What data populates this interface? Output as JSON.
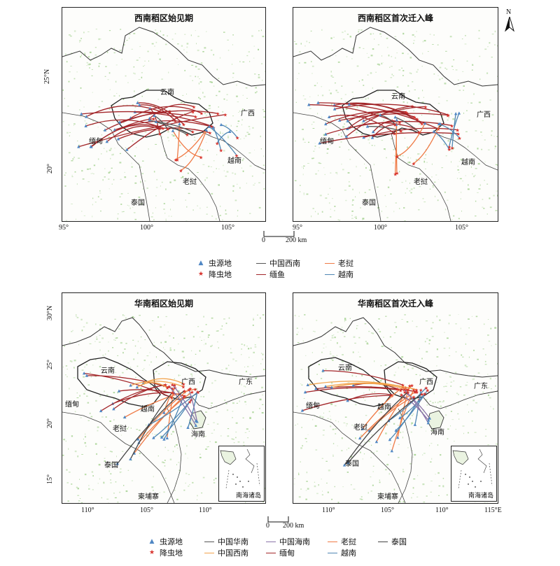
{
  "north_label": "N",
  "scale_top": {
    "zero": "0",
    "label": "200 km"
  },
  "scale_bottom": {
    "zero": "0",
    "label": "200 km"
  },
  "panels": {
    "tl": {
      "title": "西南稻区始见期",
      "labels": {
        "yunnan": "云南",
        "guangxi": "广西",
        "miandian": "缅甸",
        "yuenan": "越南",
        "laowo": "老挝",
        "taiguo": "泰国"
      },
      "lon_ticks": [
        "95°",
        "100°",
        "105°"
      ],
      "lat_ticks": [
        "25°N",
        "20°"
      ]
    },
    "tr": {
      "title": "西南稻区首次迁入峰",
      "labels": {
        "yunnan": "云南",
        "guangxi": "广西",
        "miandian": "缅甸",
        "yuenan": "越南",
        "laowo": "老挝",
        "taiguo": "泰国"
      },
      "lon_ticks": [
        "95°",
        "100°",
        "105°"
      ]
    },
    "bl": {
      "title": "华南稻区始见期",
      "labels": {
        "yunnan": "云南",
        "guangxi": "广西",
        "guangdong": "广东",
        "miandian": "缅甸",
        "yuenan": "越南",
        "laowo": "老挝",
        "taiguo": "泰国",
        "jianpuzhai": "柬埔寨",
        "hainan": "海南"
      },
      "inset_label": "南海诸岛",
      "lon_ticks": [
        "110°",
        "105°",
        "110°"
      ],
      "lat_ticks": [
        "30°N",
        "25°",
        "20°",
        "15°"
      ]
    },
    "br": {
      "title": "华南稻区首次迁入峰",
      "labels": {
        "yunnan": "云南",
        "guangxi": "广西",
        "guangdong": "广东",
        "miandian": "缅甸",
        "yuenan": "越南",
        "laowo": "老挝",
        "taiguo": "泰国",
        "jianpuzhai": "柬埔寨",
        "hainan": "海南"
      },
      "inset_label": "南海诸岛",
      "lon_ticks": [
        "110°",
        "105°",
        "110°",
        "115°E"
      ]
    }
  },
  "legend_top": {
    "source": "虫源地",
    "landing": "降虫地",
    "cn_sw": "中国西南",
    "myanmar": "缅鱼",
    "laos": "老挝",
    "vietnam": "越南"
  },
  "legend_bottom": {
    "source": "虫源地",
    "landing": "降虫地",
    "cn_south": "中国华南",
    "cn_hainan": "中国海南",
    "cn_sw": "中国西南",
    "myanmar": "缅甸",
    "laos": "老挝",
    "vietnam": "越南",
    "thailand": "泰国"
  },
  "colors": {
    "cn_sw": "#555555",
    "cn_south": "#555555",
    "myanmar": "#a3262a",
    "laos": "#ef7a45",
    "vietnam": "#4f87b4",
    "thailand": "#444444",
    "cn_hainan": "#8a73a8",
    "cn_sw_bottom": "#f2a24a",
    "source_marker": "#4f87c4",
    "landing_marker": "#d8322c",
    "vegetation": "#9fcf8a"
  }
}
